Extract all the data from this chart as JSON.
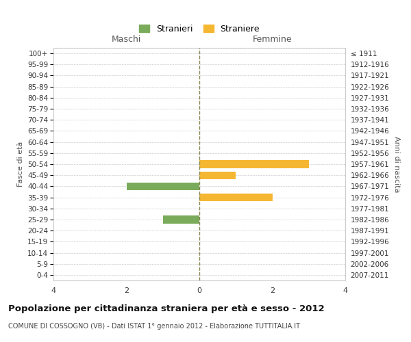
{
  "age_groups": [
    "100+",
    "95-99",
    "90-94",
    "85-89",
    "80-84",
    "75-79",
    "70-74",
    "65-69",
    "60-64",
    "55-59",
    "50-54",
    "45-49",
    "40-44",
    "35-39",
    "30-34",
    "25-29",
    "20-24",
    "15-19",
    "10-14",
    "5-9",
    "0-4"
  ],
  "birth_years": [
    "≤ 1911",
    "1912-1916",
    "1917-1921",
    "1922-1926",
    "1927-1931",
    "1932-1936",
    "1937-1941",
    "1942-1946",
    "1947-1951",
    "1952-1956",
    "1957-1961",
    "1962-1966",
    "1967-1971",
    "1972-1976",
    "1977-1981",
    "1982-1986",
    "1987-1991",
    "1992-1996",
    "1997-2001",
    "2002-2006",
    "2007-2011"
  ],
  "maschi": [
    0,
    0,
    0,
    0,
    0,
    0,
    0,
    0,
    0,
    0,
    0,
    0,
    -2,
    0,
    0,
    -1,
    0,
    0,
    0,
    0,
    0
  ],
  "femmine": [
    0,
    0,
    0,
    0,
    0,
    0,
    0,
    0,
    0,
    0,
    3,
    1,
    0,
    2,
    0,
    0,
    0,
    0,
    0,
    0,
    0
  ],
  "color_maschi": "#7aab5a",
  "color_femmine": "#f5b731",
  "title": "Popolazione per cittadinanza straniera per età e sesso - 2012",
  "subtitle": "COMUNE DI COSSOGNO (VB) - Dati ISTAT 1° gennaio 2012 - Elaborazione TUTTITALIA.IT",
  "xlabel_left": "Maschi",
  "xlabel_right": "Femmine",
  "ylabel_left": "Fasce di età",
  "ylabel_right": "Anni di nascita",
  "legend_maschi": "Stranieri",
  "legend_femmine": "Straniere",
  "xlim": [
    -4,
    4
  ],
  "xticks": [
    -4,
    -2,
    0,
    2,
    4
  ],
  "xticklabels": [
    "4",
    "2",
    "0",
    "2",
    "4"
  ],
  "background_color": "#ffffff",
  "grid_color": "#cccccc",
  "bar_height": 0.7,
  "dashed_line_color": "#888855"
}
